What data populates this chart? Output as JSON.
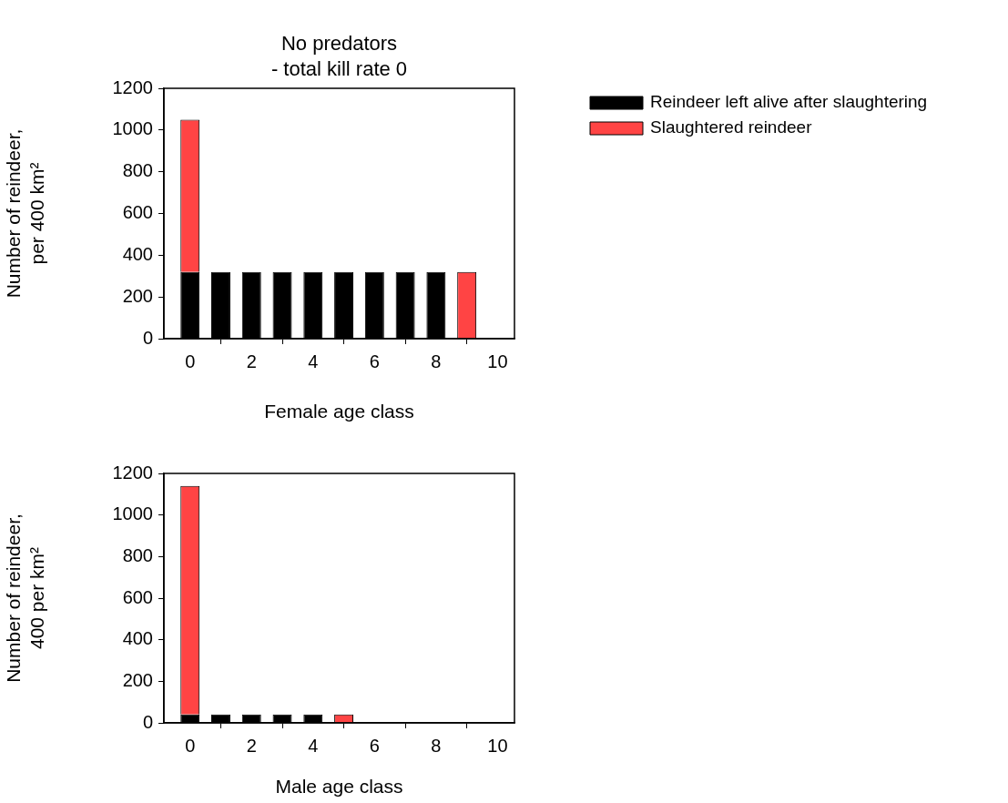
{
  "chart_data": [
    {
      "type": "bar",
      "title": "No predators\n- total kill rate 0",
      "xlabel": "Female age class",
      "ylabel": "Number of reindeer,\nper 400 km²",
      "x": [
        0,
        1,
        2,
        3,
        4,
        5,
        6,
        7,
        8,
        9
      ],
      "xlim": [
        -0.85,
        10.55
      ],
      "xticks": [
        0,
        2,
        4,
        6,
        8,
        10
      ],
      "ylim": [
        0,
        1200
      ],
      "yticks": [
        0,
        200,
        400,
        600,
        800,
        1000,
        1200
      ],
      "stacked": true,
      "grid": false,
      "legend": "top right",
      "series": [
        {
          "name": "Reindeer left alive after slaughtering",
          "color": "#000000",
          "values": [
            320,
            320,
            320,
            320,
            320,
            320,
            320,
            320,
            320,
            0
          ]
        },
        {
          "name": "Slaughtered reindeer",
          "color": "#ff4444",
          "values": [
            730,
            0,
            0,
            0,
            0,
            0,
            0,
            0,
            0,
            320
          ]
        }
      ]
    },
    {
      "type": "bar",
      "xlabel": "Male age class",
      "ylabel": "Number of reindeer,\n400 per km²",
      "x": [
        0,
        1,
        2,
        3,
        4,
        5,
        6,
        7,
        8,
        9
      ],
      "xlim": [
        -0.85,
        10.55
      ],
      "xticks": [
        0,
        2,
        4,
        6,
        8,
        10
      ],
      "ylim": [
        0,
        1200
      ],
      "yticks": [
        0,
        200,
        400,
        600,
        800,
        1000,
        1200
      ],
      "stacked": true,
      "grid": false,
      "series": [
        {
          "color": "#000000",
          "values": [
            40,
            40,
            40,
            40,
            40,
            0,
            0,
            0,
            0,
            0
          ]
        },
        {
          "color": "#ff4444",
          "values": [
            1100,
            0,
            0,
            0,
            0,
            40,
            0,
            0,
            0,
            0
          ]
        }
      ]
    }
  ]
}
